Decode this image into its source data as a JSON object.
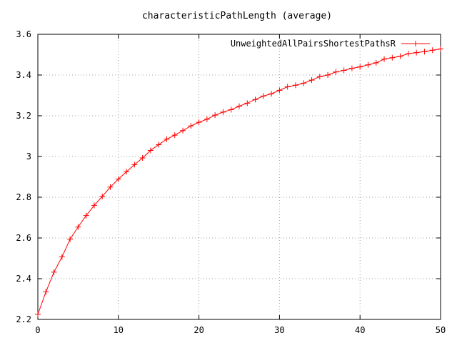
{
  "chart_data": {
    "type": "line",
    "title": "characteristicPathLength (average)",
    "xlabel": "",
    "ylabel": "",
    "xlim": [
      0,
      50
    ],
    "ylim": [
      2.2,
      3.6
    ],
    "x_ticks": [
      0,
      10,
      20,
      30,
      40,
      50
    ],
    "y_ticks": [
      2.2,
      2.4,
      2.6,
      2.8,
      3.0,
      3.2,
      3.4,
      3.6
    ],
    "x_tick_labels": [
      "0",
      "10",
      "20",
      "30",
      "40",
      "50"
    ],
    "y_tick_labels": [
      "2.2",
      "2.4",
      "2.6",
      "2.8",
      "3",
      "3.2",
      "3.4",
      "3.6"
    ],
    "grid": true,
    "legend_position": "top-right",
    "series": [
      {
        "name": "UnweightedAllPairsShortestPathsR",
        "color": "#ff0000",
        "marker": "plus",
        "x": [
          0,
          1,
          2,
          3,
          4,
          5,
          6,
          7,
          8,
          9,
          10,
          11,
          12,
          13,
          14,
          15,
          16,
          17,
          18,
          19,
          20,
          21,
          22,
          23,
          24,
          25,
          26,
          27,
          28,
          29,
          30,
          31,
          32,
          33,
          34,
          35,
          36,
          37,
          38,
          39,
          40,
          41,
          42,
          43,
          44,
          45,
          46,
          47,
          48,
          49,
          50
        ],
        "values": [
          2.225,
          2.335,
          2.432,
          2.507,
          2.594,
          2.654,
          2.71,
          2.76,
          2.804,
          2.85,
          2.889,
          2.925,
          2.96,
          2.993,
          3.03,
          3.058,
          3.085,
          3.105,
          3.127,
          3.15,
          3.168,
          3.183,
          3.203,
          3.218,
          3.23,
          3.247,
          3.262,
          3.28,
          3.297,
          3.308,
          3.325,
          3.342,
          3.35,
          3.36,
          3.375,
          3.392,
          3.4,
          3.415,
          3.423,
          3.433,
          3.44,
          3.45,
          3.46,
          3.478,
          3.485,
          3.492,
          3.505,
          3.51,
          3.515,
          3.522,
          3.528
        ]
      }
    ]
  }
}
